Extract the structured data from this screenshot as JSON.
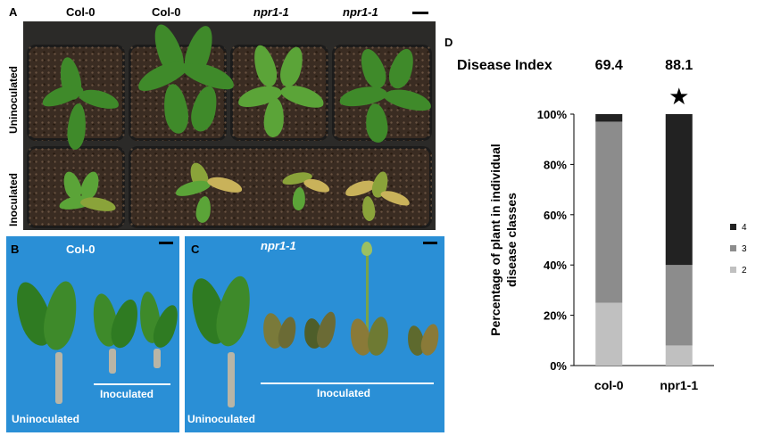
{
  "panels": {
    "A": "A",
    "B": "B",
    "C": "C",
    "D": "D"
  },
  "panel_a": {
    "column_labels": [
      "Col-0",
      "Col-0",
      "npr1-1",
      "npr1-1"
    ],
    "row_labels": [
      "Uninoculated",
      "Inoculated"
    ]
  },
  "panel_b": {
    "title": "Col-0",
    "inoculated_label": "Inoculated",
    "uninoculated_label": "Uninoculated"
  },
  "panel_c": {
    "title": "npr1-1",
    "inoculated_label": "Inoculated",
    "uninoculated_label": "Uninoculated"
  },
  "colors": {
    "class_2": "#c0c0c0",
    "class_3": "#8c8c8c",
    "class_4": "#222222",
    "photo_background_bc": "#2a8fd6"
  },
  "chart_data": {
    "type": "bar",
    "stacked": true,
    "header_label": "Disease Index",
    "disease_index": [
      "69.4",
      "88.1"
    ],
    "significance_marker": "★",
    "categories": [
      "col-0",
      "npr1-1"
    ],
    "series": [
      {
        "name": "2",
        "values": [
          25,
          8
        ]
      },
      {
        "name": "3",
        "values": [
          72,
          32
        ]
      },
      {
        "name": "4",
        "values": [
          3,
          60
        ]
      }
    ],
    "ylabel": "Percentage of plant in individual disease classes",
    "ylabel_lines": [
      "Percentage of plant in individual",
      "disease classes"
    ],
    "ylim": [
      0,
      100
    ],
    "yticks": [
      "0%",
      "20%",
      "40%",
      "60%",
      "80%",
      "100%"
    ],
    "legend_position": "right",
    "grid": false
  }
}
